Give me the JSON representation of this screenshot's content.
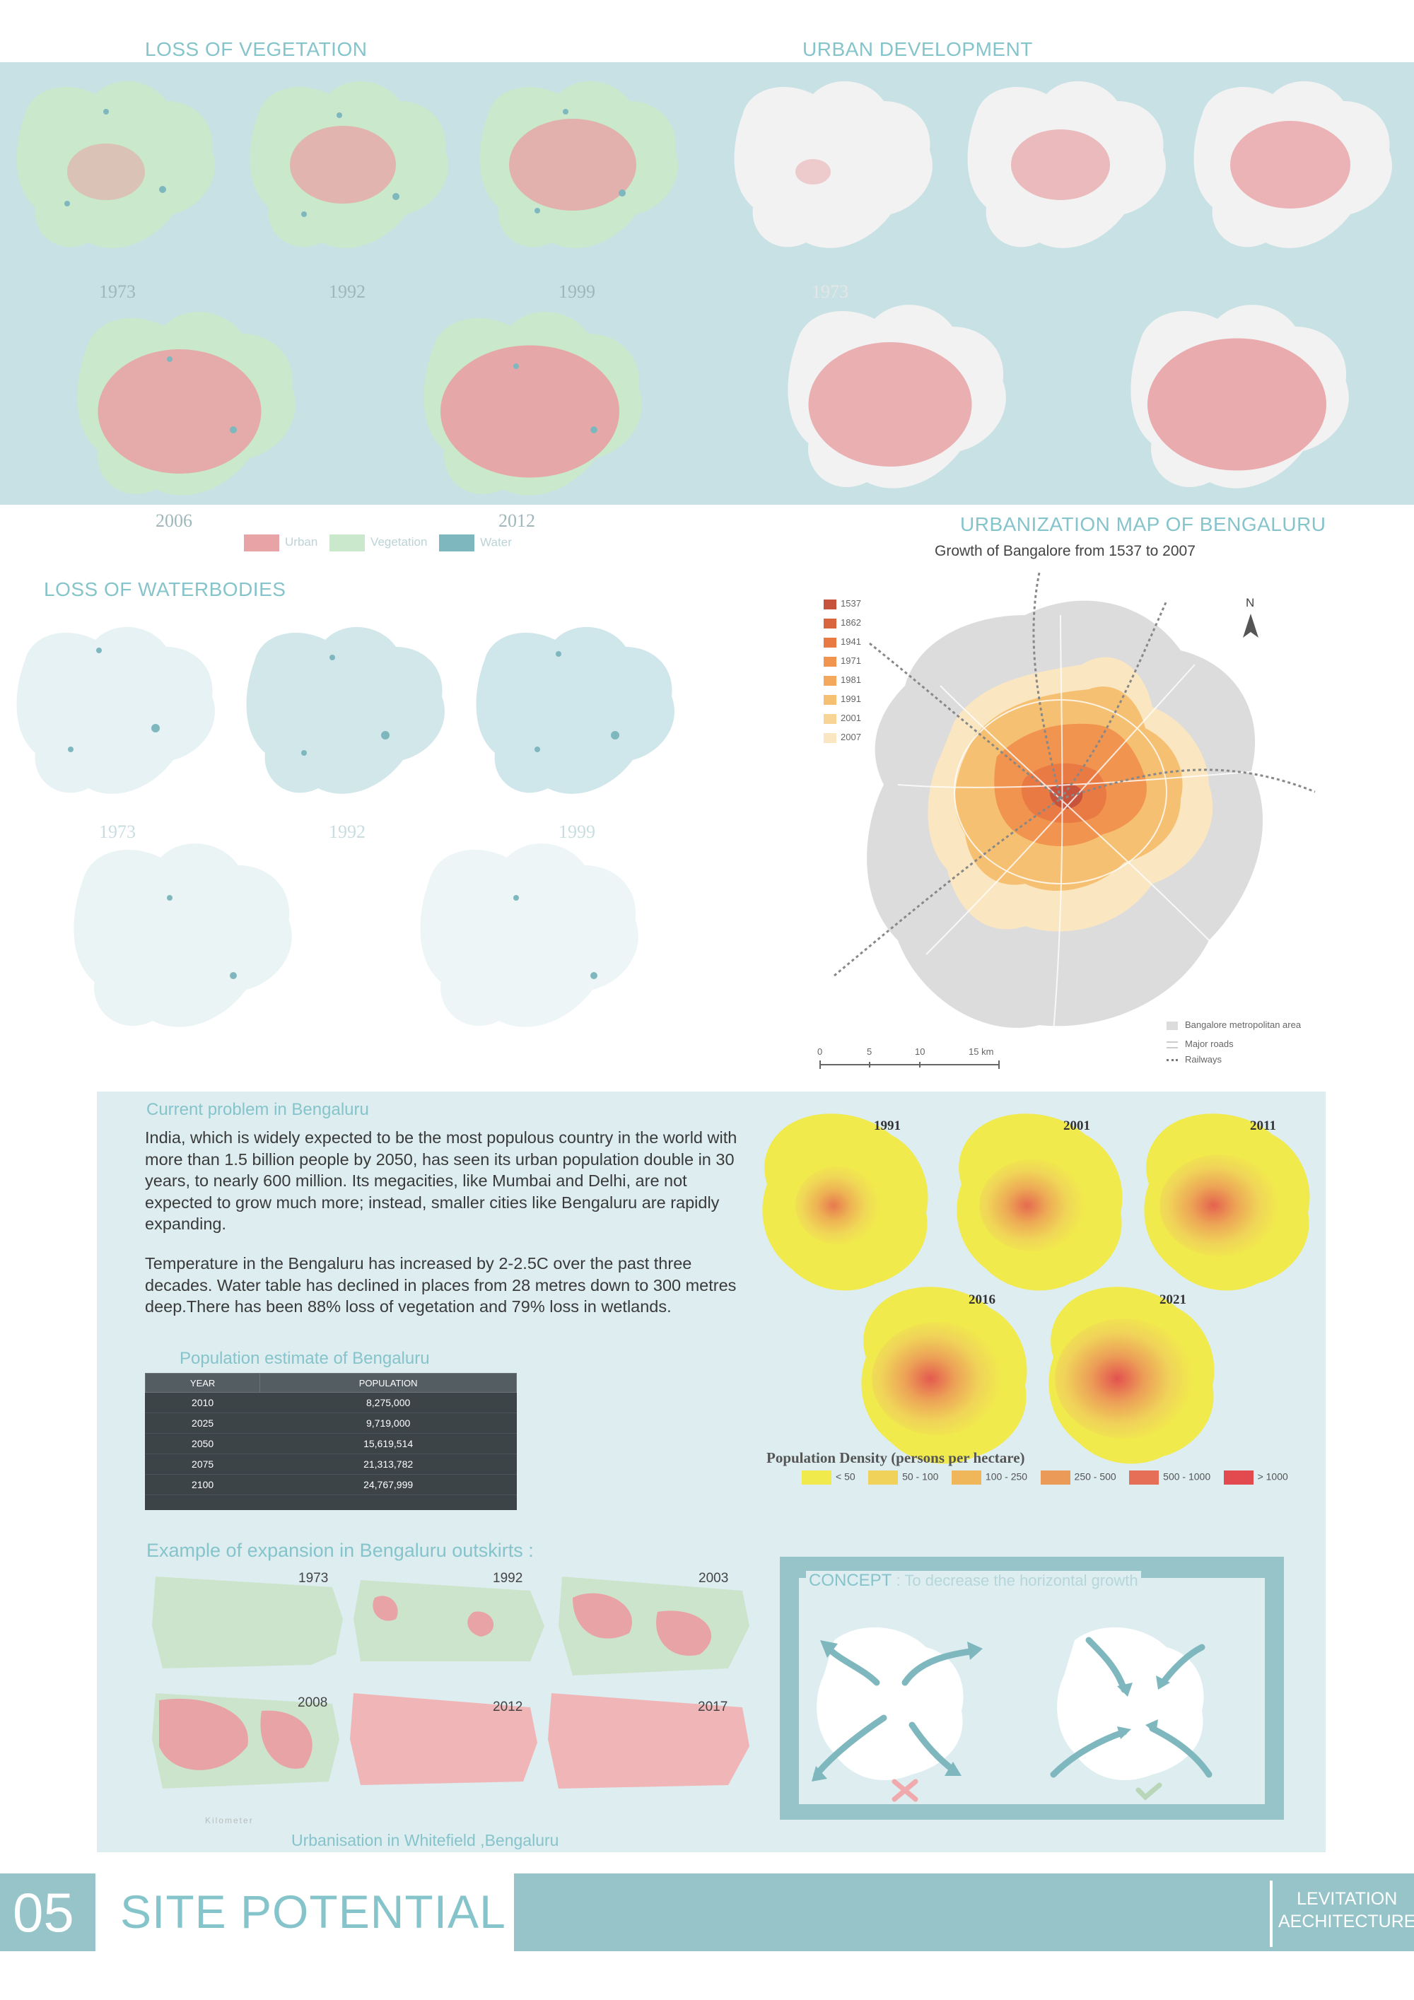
{
  "veg": {
    "title": "LOSS OF VEGETATION",
    "years": [
      "1973",
      "1992",
      "1999",
      "2006",
      "2012"
    ],
    "legend": [
      "Urban",
      "Vegetation",
      "Water"
    ],
    "colors": {
      "urban": "#e8a3a6",
      "vegetation": "#c9e8cc",
      "water": "#7fb7bf"
    }
  },
  "urban": {
    "title": "URBAN DEVELOPMENT",
    "year_first": "1973"
  },
  "urbmap": {
    "title": "URBANIZATION MAP OF BENGALURU",
    "subtitle": "Growth of Bangalore from 1537 to 2007",
    "legend": [
      "1537",
      "1862",
      "1941",
      "1971",
      "1981",
      "1991",
      "2001",
      "2007"
    ],
    "legend_colors": [
      "#c8533d",
      "#d9653f",
      "#e97a43",
      "#f0944f",
      "#f3a85d",
      "#f6c072",
      "#f8d497",
      "#fbe6c2"
    ],
    "north": "N",
    "scale": [
      "0",
      "5",
      "10",
      "15 km"
    ],
    "key": [
      "Bangalore metropolitan area",
      "Major roads",
      "Railways"
    ]
  },
  "water": {
    "title": "LOSS OF WATERBODIES",
    "years": [
      "1973",
      "1992",
      "1999"
    ]
  },
  "problem": {
    "title": "Current problem in Bengaluru",
    "para1": "India, which is widely expected to be the most populous country in the world with more than 1.5 billion people by 2050, has seen its urban population double in 30 years, to nearly 600 million. Its megacities, like Mumbai and Delhi, are not expected to grow much more; instead, smaller cities like Bengaluru are rapidly expanding.",
    "para2": "Temperature in the Bengaluru has increased by 2-2.5C over the past three decades. Water table has declined in places from 28 metres down to 300 metres deep.There has been 88% loss of vegetation and 79% loss in wetlands."
  },
  "population": {
    "title": "Population estimate of Bengaluru",
    "headers": [
      "YEAR",
      "POPULATION"
    ],
    "rows": [
      [
        "2010",
        "8,275,000"
      ],
      [
        "2025",
        "9,719,000"
      ],
      [
        "2050",
        "15,619,514"
      ],
      [
        "2075",
        "21,313,782"
      ],
      [
        "2100",
        "24,767,999"
      ]
    ]
  },
  "density": {
    "years": [
      "1991",
      "2001",
      "2011",
      "2016",
      "2021"
    ],
    "title": "Population Density (persons per hectare)",
    "legend": [
      "< 50",
      "50 - 100",
      "100 - 250",
      "250 - 500",
      "500 - 1000",
      "> 1000"
    ],
    "colors": [
      "#f1ea4c",
      "#f0d25a",
      "#efb65a",
      "#ec9a58",
      "#e57057",
      "#e24a4f"
    ]
  },
  "expansion": {
    "title": "Example of expansion in Bengaluru outskirts :",
    "years": [
      "1973",
      "1992",
      "2003",
      "2008",
      "2012",
      "2017"
    ],
    "caption": "Urbanisation in Whitefield ,Bengaluru",
    "scale_label": "Kilometer"
  },
  "concept": {
    "label": "CONCEPT",
    "text": ": To decrease the horizontal growth"
  },
  "footer": {
    "number": "05",
    "title": "SITE POTENTIAL",
    "brand_line1": "LEVITATION",
    "brand_line2": "AECHITECTURE"
  }
}
